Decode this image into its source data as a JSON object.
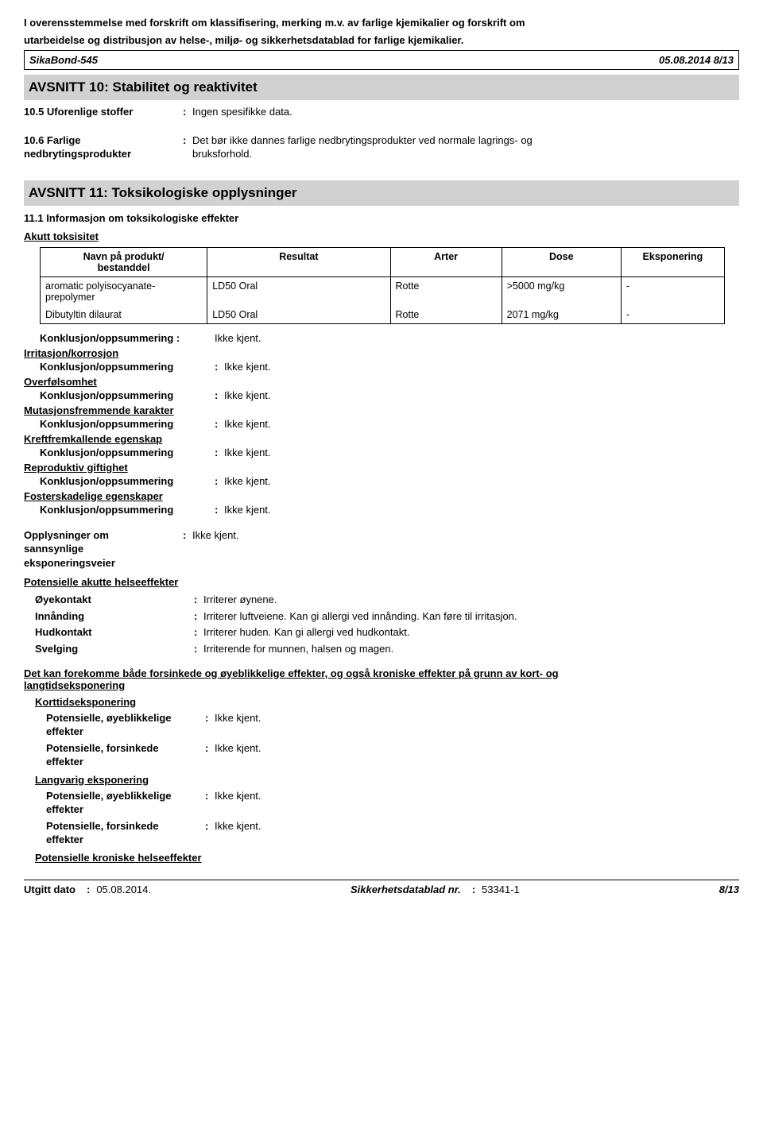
{
  "intro_line_1": "I overensstemmelse med forskrift om klassifisering, merking m.v. av farlige kjemikalier og forskrift om",
  "intro_line_2": "utarbeidelse og distribusjon av helse-, miljø- og sikkerhetsdatablad for farlige kjemikalier.",
  "doc_header": {
    "product": "SikaBond-545",
    "date_page": "05.08.2014 8/13"
  },
  "section10": {
    "title": "AVSNITT 10: Stabilitet og reaktivitet",
    "row1_key": "10.5 Uforenlige stoffer",
    "row1_val": "Ingen spesifikke data.",
    "row2_key1": "10.6 Farlige",
    "row2_key2": "nedbrytingsprodukter",
    "row2_val1": "Det bør ikke dannes farlige nedbrytingsprodukter ved normale lagrings- og",
    "row2_val2": "bruksforhold."
  },
  "section11": {
    "title": "AVSNITT 11: Toksikologiske opplysninger",
    "sub1": "11.1 Informasjon om toksikologiske effekter",
    "acute": "Akutt toksisitet",
    "table": {
      "headers": {
        "c1a": "Navn på produkt/",
        "c1b": "bestanddel",
        "c2": "Resultat",
        "c3": "Arter",
        "c4": "Dose",
        "c5": "Eksponering"
      },
      "col_widths": {
        "c1": "210px",
        "c2": "230px",
        "c3": "140px",
        "c4": "150px",
        "c5": "130px"
      },
      "rows": [
        {
          "name_l1": "aromatic polyisocyanate-",
          "name_l2": "prepolymer",
          "result": "LD50 Oral",
          "species": "Rotte",
          "dose": ">5000 mg/kg",
          "exposure": "-"
        },
        {
          "name_l1": "Dibutyltin dilaurat",
          "name_l2": "",
          "result": "LD50 Oral",
          "species": "Rotte",
          "dose": "2071 mg/kg",
          "exposure": "-"
        }
      ]
    },
    "conclusions": {
      "summary_label": "Konklusjon/oppsummering",
      "summary_label_colon": "Konklusjon/oppsummering :",
      "value": "Ikke kjent.",
      "groups": [
        "Irritasjon/korrosjon",
        "Overfølsomhet",
        "Mutasjonsfremmende karakter",
        "Kreftfremkallende egenskap",
        "Reproduktiv giftighet",
        "Fosterskadelige egenskaper"
      ]
    },
    "exposure_routes": {
      "key_l1": "Opplysninger om",
      "key_l2": "sannsynlige",
      "key_l3": "eksponeringsveier",
      "val": "Ikke kjent."
    },
    "acute_effects_heading": "Potensielle akutte helseeffekter",
    "acute_effects": [
      {
        "key": "Øyekontakt",
        "val": "Irriterer øynene."
      },
      {
        "key": "Innånding",
        "val": "Irriterer luftveiene.  Kan gi allergi ved innånding.  Kan føre til irritasjon."
      },
      {
        "key": "Hudkontakt",
        "val": "Irriterer huden.  Kan gi allergi ved hudkontakt."
      },
      {
        "key": "Svelging",
        "val": "Irriterende for munnen, halsen og magen."
      }
    ],
    "delayed_heading_l1": "Det kan forekomme både forsinkede og øyeblikkelige effekter, og også kroniske effekter på grunn av kort- og",
    "delayed_heading_l2": "langtidseksponering",
    "short_term": "Korttidseksponering",
    "long_term": "Langvarig eksponering",
    "effect_items": {
      "imm_l1": "Potensielle, øyeblikkelige",
      "imm_l2": "effekter",
      "del_l1": "Potensielle, forsinkede",
      "del_l2": "effekter",
      "val": "Ikke kjent."
    },
    "chronic_heading": "Potensielle kroniske helseeffekter"
  },
  "footer": {
    "left_label": "Utgitt dato",
    "left_val": "05.08.2014.",
    "mid_label": "Sikkerhetsdatablad nr.",
    "mid_val": "53341-1",
    "right": "8/13"
  }
}
